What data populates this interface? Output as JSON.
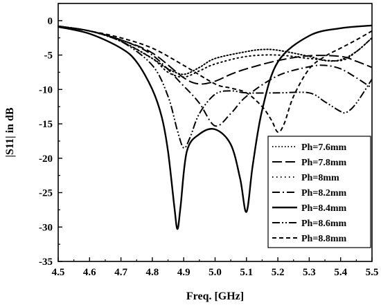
{
  "chart_data": {
    "type": "line",
    "xlabel": "Freq. [GHz]",
    "ylabel": "|S11| in dB",
    "xlim": [
      4.5,
      5.5
    ],
    "ylim": [
      -35,
      2.5
    ],
    "xticks": [
      "4.5",
      "4.6",
      "4.7",
      "4.8",
      "4.9",
      "5.0",
      "5.1",
      "5.2",
      "5.3",
      "5.4",
      "5.5"
    ],
    "yticks": [
      "0",
      "-5",
      "-10",
      "-15",
      "-20",
      "-25",
      "-30",
      "-35"
    ],
    "grid": false,
    "legend_position": "right",
    "series": [
      {
        "name": "Ph=7.6mm",
        "dash": "dotted",
        "x": [
          4.5,
          4.6,
          4.7,
          4.8,
          4.85,
          4.9,
          4.95,
          5.0,
          5.1,
          5.15,
          5.2,
          5.3,
          5.35,
          5.4,
          5.45,
          5.5
        ],
        "y": [
          -0.8,
          -1.5,
          -3,
          -5.5,
          -7,
          -7.8,
          -6.8,
          -5.5,
          -4.5,
          -4.2,
          -4.3,
          -5.2,
          -5.8,
          -5.7,
          -4.5,
          -2.5
        ]
      },
      {
        "name": "Ph=7.8mm",
        "dash": "longdash",
        "x": [
          4.5,
          4.6,
          4.7,
          4.8,
          4.9,
          4.95,
          5.0,
          5.05,
          5.1,
          5.2,
          5.3,
          5.4,
          5.45,
          5.5
        ],
        "y": [
          -0.8,
          -1.5,
          -2.8,
          -4.7,
          -8.3,
          -9.2,
          -8.8,
          -7.8,
          -7,
          -5.8,
          -5.1,
          -5.2,
          -5.9,
          -6.8
        ]
      },
      {
        "name": "Ph=8mm",
        "dash": "smalldot",
        "x": [
          4.5,
          4.6,
          4.7,
          4.8,
          4.85,
          4.9,
          4.95,
          5.0,
          5.1,
          5.2,
          5.3,
          5.4,
          5.45,
          5.5
        ],
        "y": [
          -0.8,
          -1.5,
          -3,
          -5.5,
          -7.5,
          -8.2,
          -7.3,
          -6.3,
          -5.2,
          -5,
          -5.5,
          -5.8,
          -4.5,
          -2.5
        ]
      },
      {
        "name": "Ph=8.2mm",
        "dash": "dashdot",
        "x": [
          4.5,
          4.6,
          4.7,
          4.8,
          4.9,
          4.95,
          5.0,
          5.05,
          5.1,
          5.2,
          5.3,
          5.35,
          5.4,
          5.45,
          5.5
        ],
        "y": [
          -0.8,
          -1.5,
          -2.8,
          -5,
          -9.5,
          -12,
          -15.3,
          -13.5,
          -11,
          -8,
          -6.7,
          -6.5,
          -7,
          -8.3,
          -9.8
        ]
      },
      {
        "name": "Ph=8.4mm",
        "dash": "solid",
        "x": [
          4.5,
          4.6,
          4.7,
          4.75,
          4.8,
          4.83,
          4.85,
          4.87,
          4.88,
          4.89,
          4.91,
          4.95,
          5.0,
          5.05,
          5.08,
          5.1,
          5.12,
          5.15,
          5.2,
          5.3,
          5.4,
          5.5
        ],
        "y": [
          -0.9,
          -1.9,
          -4,
          -6,
          -10,
          -14,
          -19,
          -27,
          -30.3,
          -27,
          -19,
          -16.5,
          -15.8,
          -18,
          -23,
          -27.8,
          -21,
          -13,
          -6,
          -2.2,
          -1.1,
          -0.7
        ]
      },
      {
        "name": "Ph=8.6mm",
        "dash": "dashdotdot",
        "x": [
          4.5,
          4.6,
          4.7,
          4.8,
          4.85,
          4.88,
          4.9,
          4.92,
          4.95,
          5.0,
          5.05,
          5.1,
          5.2,
          5.3,
          5.35,
          5.4,
          5.42,
          5.45,
          5.5
        ],
        "y": [
          -0.8,
          -1.5,
          -3,
          -6.5,
          -11,
          -16,
          -18.5,
          -17,
          -13.5,
          -10.7,
          -10.2,
          -10.5,
          -10.5,
          -10.5,
          -11.8,
          -13.2,
          -13.3,
          -12,
          -8.5
        ]
      },
      {
        "name": "Ph=8.8mm",
        "dash": "dashed",
        "x": [
          4.5,
          4.6,
          4.7,
          4.8,
          4.9,
          5.0,
          5.05,
          5.1,
          5.15,
          5.18,
          5.2,
          5.22,
          5.25,
          5.3,
          5.35,
          5.4,
          5.45,
          5.5
        ],
        "y": [
          -0.8,
          -1.5,
          -2.5,
          -4,
          -6.5,
          -9.2,
          -9.8,
          -10.5,
          -12.5,
          -14.5,
          -16.2,
          -15,
          -11,
          -7,
          -5.2,
          -4,
          -2.8,
          -1.5
        ]
      }
    ]
  }
}
